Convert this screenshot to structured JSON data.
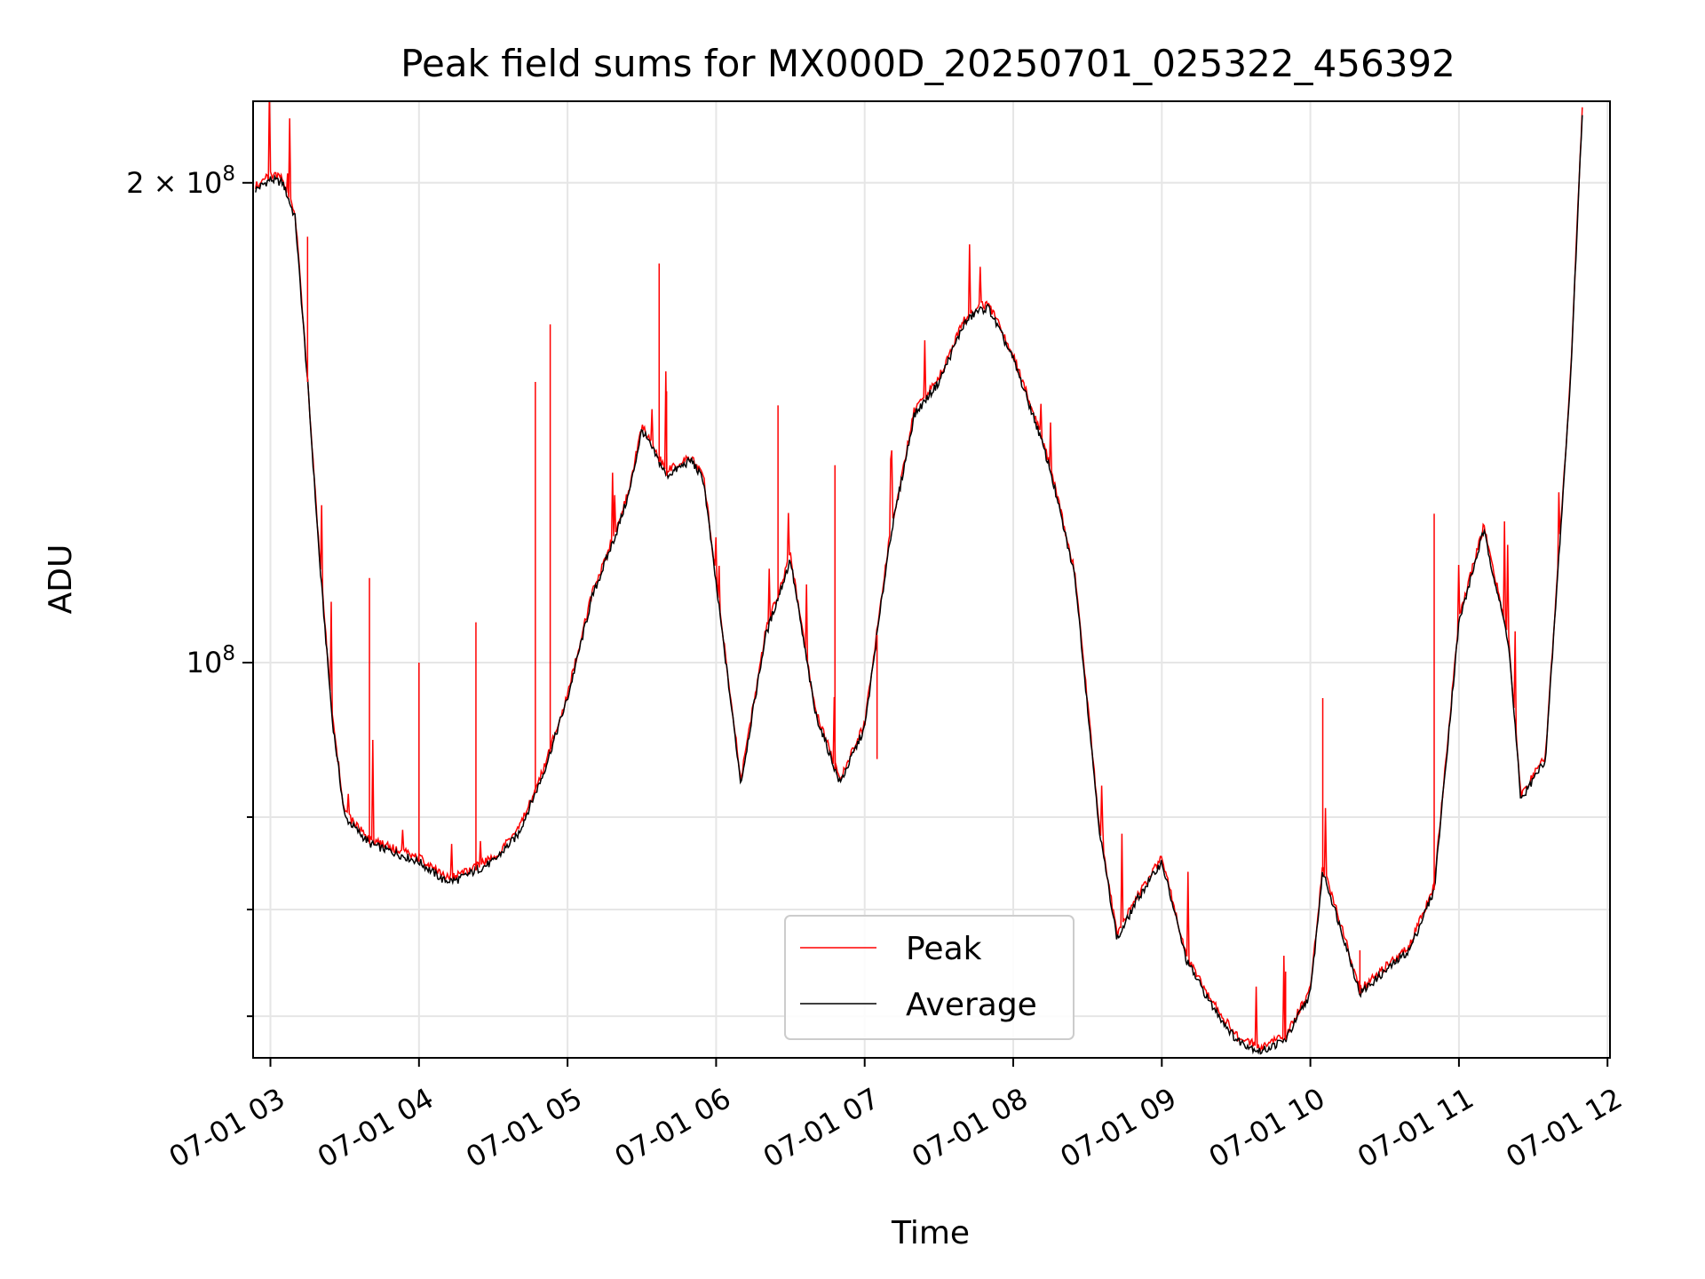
{
  "chart_data": {
    "type": "line",
    "title": "Peak field sums for MX000D_20250701_025322_456392",
    "xlabel": "Time",
    "ylabel": "ADU",
    "yscale": "log",
    "ylim": [
      56500000,
      225000000
    ],
    "xlim": [
      "07-01 02:53",
      "07-01 12:01"
    ],
    "grid": true,
    "legend_position": "lower-center",
    "x_ticks": [
      "07-01 03",
      "07-01 04",
      "07-01 05",
      "07-01 06",
      "07-01 07",
      "07-01 08",
      "07-01 09",
      "07-01 10",
      "07-01 11",
      "07-01 12"
    ],
    "y_tick_labels": [
      {
        "value": 200000000,
        "base": "2 × 10",
        "exp": "8"
      },
      {
        "value": 100000000,
        "base": "10",
        "exp": "8"
      }
    ],
    "y_minor_ticks": [
      60000000,
      70000000,
      80000000
    ],
    "series": [
      {
        "name": "Average",
        "color": "#000000",
        "x": [
          "07-01 02:54",
          "07-01 03:00",
          "07-01 03:05",
          "07-01 03:10",
          "07-01 03:15",
          "07-01 03:20",
          "07-01 03:25",
          "07-01 03:30",
          "07-01 03:40",
          "07-01 03:50",
          "07-01 04:00",
          "07-01 04:10",
          "07-01 04:15",
          "07-01 04:30",
          "07-01 04:40",
          "07-01 04:50",
          "07-01 05:00",
          "07-01 05:10",
          "07-01 05:20",
          "07-01 05:25",
          "07-01 05:30",
          "07-01 05:40",
          "07-01 05:50",
          "07-01 05:55",
          "07-01 06:00",
          "07-01 06:10",
          "07-01 06:20",
          "07-01 06:30",
          "07-01 06:40",
          "07-01 06:50",
          "07-01 07:00",
          "07-01 07:10",
          "07-01 07:20",
          "07-01 07:30",
          "07-01 07:40",
          "07-01 07:45",
          "07-01 07:50",
          "07-01 08:00",
          "07-01 08:10",
          "07-01 08:15",
          "07-01 08:25",
          "07-01 08:35",
          "07-01 08:42",
          "07-01 08:50",
          "07-01 09:00",
          "07-01 09:10",
          "07-01 09:20",
          "07-01 09:30",
          "07-01 09:40",
          "07-01 09:50",
          "07-01 10:00",
          "07-01 10:05",
          "07-01 10:15",
          "07-01 10:20",
          "07-01 10:30",
          "07-01 10:40",
          "07-01 10:50",
          "07-01 11:00",
          "07-01 11:10",
          "07-01 11:20",
          "07-01 11:25",
          "07-01 11:35",
          "07-01 11:45",
          "07-01 11:50"
        ],
        "values": [
          198000000,
          201000000,
          200000000,
          190000000,
          150000000,
          115000000,
          92000000,
          80000000,
          77000000,
          76000000,
          75000000,
          73000000,
          73000000,
          75000000,
          78000000,
          85000000,
          95000000,
          110000000,
          121000000,
          128000000,
          140000000,
          131000000,
          134000000,
          130000000,
          112000000,
          84000000,
          104000000,
          116000000,
          93000000,
          84000000,
          91000000,
          119000000,
          143000000,
          150000000,
          163000000,
          166000000,
          167000000,
          155000000,
          140000000,
          132000000,
          113000000,
          78000000,
          67000000,
          71000000,
          75000000,
          65000000,
          61000000,
          58000000,
          57000000,
          58000000,
          62000000,
          74000000,
          66000000,
          62000000,
          64000000,
          66000000,
          72000000,
          106000000,
          121000000,
          103000000,
          82000000,
          87000000,
          150000000,
          225000000
        ]
      },
      {
        "name": "Peak",
        "color": "#ff0000",
        "spikes": [
          {
            "x": "07-01 03:15",
            "value": 185000000
          },
          {
            "x": "07-01 03:40",
            "value": 113000000
          },
          {
            "x": "07-01 04:00",
            "value": 100000000
          },
          {
            "x": "07-01 04:23",
            "value": 106000000
          },
          {
            "x": "07-01 04:47",
            "value": 150000000
          },
          {
            "x": "07-01 04:53",
            "value": 163000000
          },
          {
            "x": "07-01 05:37",
            "value": 178000000
          },
          {
            "x": "07-01 05:40",
            "value": 148000000
          },
          {
            "x": "07-01 06:25",
            "value": 145000000
          },
          {
            "x": "07-01 06:48",
            "value": 133000000
          },
          {
            "x": "07-01 07:05",
            "value": 87000000
          },
          {
            "x": "07-01 07:30",
            "value": 150000000
          },
          {
            "x": "07-01 09:50",
            "value": 64000000
          },
          {
            "x": "07-01 10:05",
            "value": 95000000
          },
          {
            "x": "07-01 10:20",
            "value": 66000000
          },
          {
            "x": "07-01 10:50",
            "value": 124000000
          }
        ]
      }
    ]
  }
}
